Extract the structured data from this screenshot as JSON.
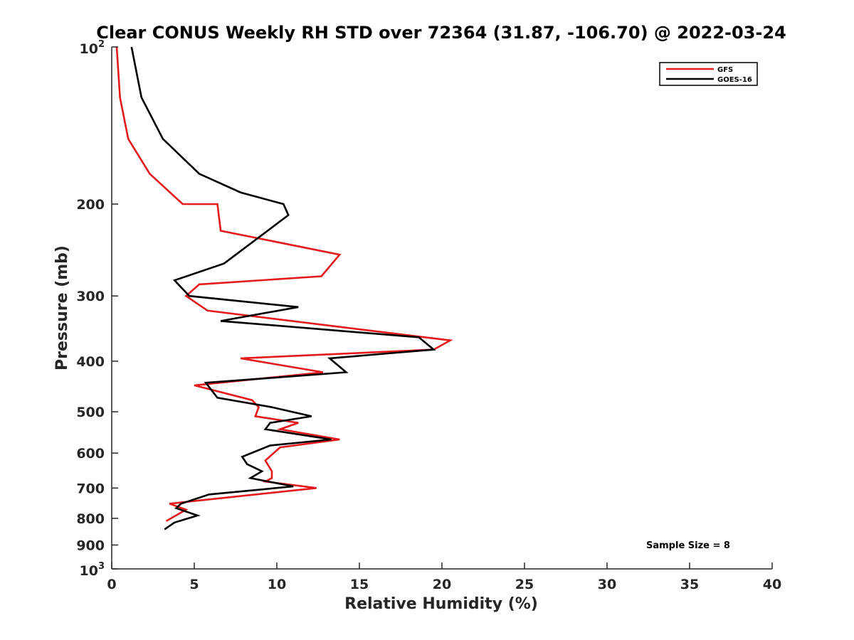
{
  "chart_data": {
    "type": "line",
    "title": "Clear CONUS Weekly RH STD over 72364 (31.87, -106.70) @ 2022-03-24",
    "xlabel": "Relative Humidity (%)",
    "ylabel": "Pressure (mb)",
    "xlim": [
      0,
      40
    ],
    "ylim": [
      100,
      1000
    ],
    "y_scale": "log",
    "y_reversed": true,
    "grid": false,
    "legend_position": "top-right",
    "x_ticks": [
      {
        "value": 0,
        "label": "0"
      },
      {
        "value": 5,
        "label": "5"
      },
      {
        "value": 10,
        "label": "10"
      },
      {
        "value": 15,
        "label": "15"
      },
      {
        "value": 20,
        "label": "20"
      },
      {
        "value": 25,
        "label": "25"
      },
      {
        "value": 30,
        "label": "30"
      },
      {
        "value": 35,
        "label": "35"
      },
      {
        "value": 40,
        "label": "40"
      }
    ],
    "y_ticks": [
      {
        "value": 100,
        "base": "10",
        "exp": "2"
      },
      {
        "value": 200,
        "label": "200"
      },
      {
        "value": 300,
        "label": "300"
      },
      {
        "value": 400,
        "label": "400"
      },
      {
        "value": 500,
        "label": "500"
      },
      {
        "value": 600,
        "label": "600"
      },
      {
        "value": 700,
        "label": "700"
      },
      {
        "value": 800,
        "label": "800"
      },
      {
        "value": 900,
        "label": "900"
      },
      {
        "value": 1000,
        "base": "10",
        "exp": "3"
      }
    ],
    "series": [
      {
        "name": "GFS",
        "color": "#e41a1c",
        "points": [
          [
            0.3,
            100
          ],
          [
            0.5,
            125
          ],
          [
            1.0,
            150
          ],
          [
            2.3,
            175
          ],
          [
            4.3,
            200
          ],
          [
            6.4,
            200
          ],
          [
            6.6,
            225
          ],
          [
            13.8,
            250
          ],
          [
            12.7,
            275
          ],
          [
            5.3,
            285
          ],
          [
            4.5,
            300
          ],
          [
            5.8,
            320
          ],
          [
            20.5,
            365
          ],
          [
            19.5,
            380
          ],
          [
            7.8,
            395
          ],
          [
            12.8,
            420
          ],
          [
            5.0,
            445
          ],
          [
            8.5,
            475
          ],
          [
            8.9,
            490
          ],
          [
            8.7,
            510
          ],
          [
            11.3,
            525
          ],
          [
            10.2,
            540
          ],
          [
            13.8,
            565
          ],
          [
            10.2,
            585
          ],
          [
            9.3,
            620
          ],
          [
            9.7,
            650
          ],
          [
            9.7,
            670
          ],
          [
            9.3,
            680
          ],
          [
            12.4,
            700
          ],
          [
            3.5,
            750
          ],
          [
            4.5,
            770
          ],
          [
            3.3,
            810
          ]
        ]
      },
      {
        "name": "GOES-16",
        "color": "#000000",
        "points": [
          [
            1.2,
            100
          ],
          [
            1.8,
            125
          ],
          [
            3.1,
            150
          ],
          [
            5.3,
            175
          ],
          [
            7.8,
            190
          ],
          [
            10.4,
            200
          ],
          [
            10.7,
            210
          ],
          [
            6.8,
            260
          ],
          [
            3.8,
            280
          ],
          [
            4.7,
            300
          ],
          [
            11.3,
            315
          ],
          [
            6.6,
            335
          ],
          [
            18.6,
            360
          ],
          [
            19.5,
            380
          ],
          [
            13.2,
            395
          ],
          [
            14.2,
            420
          ],
          [
            5.7,
            440
          ],
          [
            6.4,
            470
          ],
          [
            9.7,
            490
          ],
          [
            12.1,
            510
          ],
          [
            9.6,
            525
          ],
          [
            9.3,
            540
          ],
          [
            13.3,
            565
          ],
          [
            9.6,
            580
          ],
          [
            7.9,
            610
          ],
          [
            8.2,
            630
          ],
          [
            9.1,
            650
          ],
          [
            8.4,
            670
          ],
          [
            11.0,
            695
          ],
          [
            5.9,
            720
          ],
          [
            4.2,
            750
          ],
          [
            3.9,
            765
          ],
          [
            5.2,
            790
          ],
          [
            3.8,
            815
          ],
          [
            3.2,
            840
          ]
        ]
      }
    ],
    "annotation": "Sample Size = 8"
  }
}
